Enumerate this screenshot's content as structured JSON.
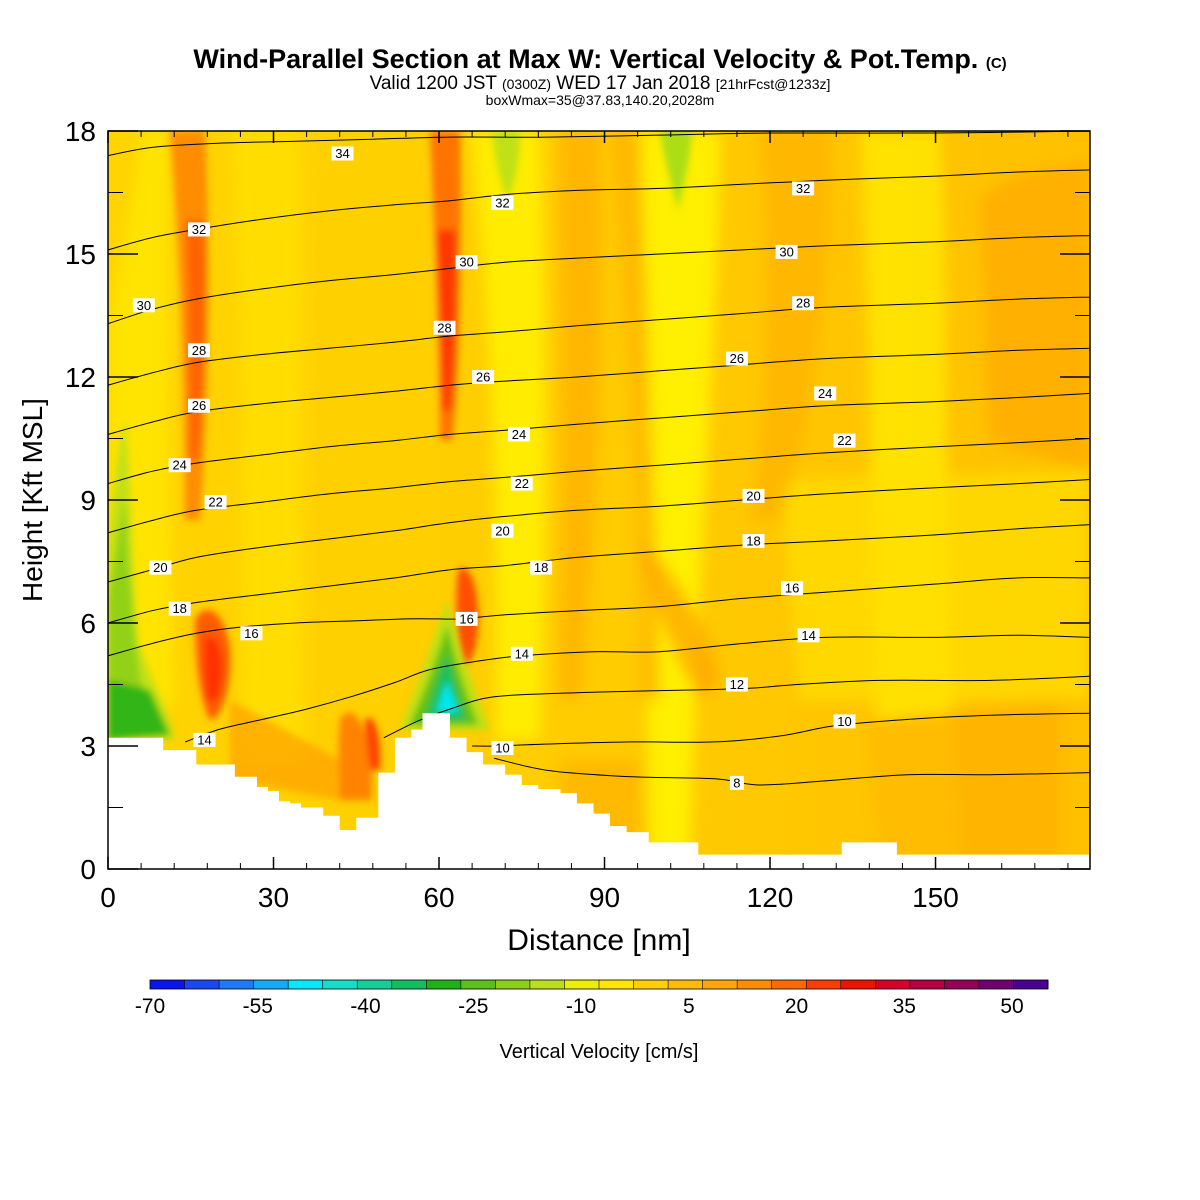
{
  "header": {
    "title": "Wind-Parallel Section at Max W: Vertical Velocity & Pot.Temp.",
    "title_suffix": "(C)",
    "valid_prefix": "Valid 1200 JST",
    "valid_utc": "(0300Z)",
    "valid_date": "WED 17 Jan 2018",
    "forecast_info": "[21hrFcst@1233z]",
    "box_info": "boxWmax=35@37.83,140.20,2028m"
  },
  "chart_data": {
    "type": "contour",
    "xlabel": "Distance [nm]",
    "ylabel": "Height [Kft MSL]",
    "xlim": [
      0,
      178
    ],
    "ylim": [
      0,
      18
    ],
    "x_ticks": [
      0,
      30,
      60,
      90,
      120,
      150
    ],
    "y_ticks": [
      0,
      3,
      6,
      9,
      12,
      15,
      18
    ],
    "colorbar": {
      "label": "Vertical Velocity [cm/s]",
      "tick_labels": [
        "-70",
        "-55",
        "-40",
        "-25",
        "-10",
        "5",
        "20",
        "35",
        "50"
      ],
      "colors": [
        "#0a14f0",
        "#1a46f6",
        "#1e78f8",
        "#14aaf8",
        "#00eaf8",
        "#10e0c8",
        "#14d096",
        "#10c060",
        "#22b018",
        "#5cc018",
        "#8cd018",
        "#bce018",
        "#ecf000",
        "#ffe600",
        "#ffd000",
        "#ffbc00",
        "#ffa600",
        "#ff8c00",
        "#ff6a00",
        "#ff3c00",
        "#f01200",
        "#d80028",
        "#b80040",
        "#980058",
        "#700070",
        "#4a0090"
      ]
    },
    "terrain": [
      [
        0,
        3.2
      ],
      [
        3,
        3.2
      ],
      [
        5,
        3.2
      ],
      [
        7,
        3.2
      ],
      [
        9,
        3.2
      ],
      [
        10,
        3.2
      ],
      [
        10,
        2.9
      ],
      [
        12,
        2.9
      ],
      [
        16,
        2.9
      ],
      [
        16,
        2.55
      ],
      [
        19,
        2.55
      ],
      [
        23,
        2.55
      ],
      [
        23,
        2.25
      ],
      [
        27,
        2.25
      ],
      [
        27,
        2.0
      ],
      [
        29,
        2.0
      ],
      [
        29,
        1.9
      ],
      [
        31,
        1.9
      ],
      [
        31,
        1.65
      ],
      [
        33,
        1.65
      ],
      [
        33,
        1.6
      ],
      [
        35,
        1.6
      ],
      [
        35,
        1.5
      ],
      [
        39,
        1.5
      ],
      [
        39,
        1.3
      ],
      [
        42,
        1.3
      ],
      [
        42,
        0.95
      ],
      [
        45,
        0.95
      ],
      [
        45,
        1.25
      ],
      [
        49,
        1.25
      ],
      [
        49,
        2.35
      ],
      [
        52,
        2.35
      ],
      [
        52,
        3.2
      ],
      [
        55,
        3.2
      ],
      [
        55,
        3.4
      ],
      [
        57,
        3.4
      ],
      [
        57,
        3.8
      ],
      [
        60,
        3.8
      ],
      [
        62,
        3.8
      ],
      [
        62,
        3.2
      ],
      [
        65,
        3.2
      ],
      [
        65,
        2.85
      ],
      [
        68,
        2.85
      ],
      [
        68,
        2.55
      ],
      [
        72,
        2.55
      ],
      [
        72,
        2.3
      ],
      [
        75,
        2.3
      ],
      [
        75,
        2.05
      ],
      [
        78,
        2.05
      ],
      [
        78,
        1.95
      ],
      [
        82,
        1.95
      ],
      [
        82,
        1.85
      ],
      [
        85,
        1.85
      ],
      [
        85,
        1.6
      ],
      [
        88,
        1.6
      ],
      [
        88,
        1.35
      ],
      [
        91,
        1.35
      ],
      [
        91,
        1.05
      ],
      [
        94,
        1.05
      ],
      [
        94,
        0.9
      ],
      [
        98,
        0.9
      ],
      [
        98,
        0.65
      ],
      [
        101,
        0.65
      ],
      [
        107,
        0.65
      ],
      [
        107,
        0.35
      ],
      [
        112,
        0.35
      ],
      [
        118,
        0.35
      ],
      [
        124,
        0.35
      ],
      [
        130,
        0.35
      ],
      [
        133,
        0.35
      ],
      [
        133,
        0.65
      ],
      [
        139,
        0.65
      ],
      [
        143,
        0.65
      ],
      [
        143,
        0.35
      ],
      [
        150,
        0.35
      ],
      [
        162,
        0.35
      ],
      [
        170,
        0.35
      ],
      [
        178,
        0.35
      ]
    ],
    "theta_contours": [
      {
        "label": "8",
        "points": [
          [
            70,
            2.7
          ],
          [
            80,
            2.4
          ],
          [
            95,
            2.25
          ],
          [
            110,
            2.2
          ],
          [
            118,
            2.05
          ],
          [
            130,
            2.15
          ],
          [
            145,
            2.3
          ],
          [
            160,
            2.3
          ],
          [
            178,
            2.35
          ]
        ]
      },
      {
        "label": "10",
        "points": [
          [
            66,
            3.0
          ],
          [
            70,
            3.0
          ],
          [
            80,
            3.05
          ],
          [
            95,
            3.1
          ],
          [
            110,
            3.1
          ],
          [
            122,
            3.25
          ],
          [
            132,
            3.5
          ],
          [
            145,
            3.65
          ],
          [
            160,
            3.75
          ],
          [
            178,
            3.8
          ]
        ]
      },
      {
        "label": "12",
        "points": [
          [
            50,
            3.2
          ],
          [
            56,
            3.6
          ],
          [
            62,
            3.9
          ],
          [
            70,
            4.2
          ],
          [
            85,
            4.3
          ],
          [
            100,
            4.35
          ],
          [
            115,
            4.4
          ],
          [
            125,
            4.5
          ],
          [
            140,
            4.6
          ],
          [
            160,
            4.6
          ],
          [
            178,
            4.7
          ]
        ]
      },
      {
        "label": "14",
        "points": [
          [
            14,
            3.1
          ],
          [
            20,
            3.4
          ],
          [
            28,
            3.65
          ],
          [
            36,
            3.9
          ],
          [
            44,
            4.2
          ],
          [
            52,
            4.55
          ],
          [
            58,
            4.85
          ],
          [
            66,
            5.05
          ],
          [
            75,
            5.2
          ],
          [
            88,
            5.3
          ],
          [
            100,
            5.3
          ],
          [
            115,
            5.5
          ],
          [
            130,
            5.65
          ],
          [
            150,
            5.65
          ],
          [
            165,
            5.7
          ],
          [
            178,
            5.65
          ]
        ]
      },
      {
        "label": "16",
        "points": [
          [
            0,
            5.2
          ],
          [
            8,
            5.5
          ],
          [
            16,
            5.75
          ],
          [
            24,
            5.9
          ],
          [
            34,
            6.0
          ],
          [
            44,
            6.05
          ],
          [
            54,
            6.1
          ],
          [
            60,
            6.1
          ],
          [
            64,
            6.1
          ],
          [
            72,
            6.2
          ],
          [
            85,
            6.3
          ],
          [
            100,
            6.4
          ],
          [
            115,
            6.6
          ],
          [
            130,
            6.75
          ],
          [
            150,
            6.95
          ],
          [
            165,
            7.1
          ],
          [
            178,
            7.1
          ]
        ]
      },
      {
        "label": "18",
        "points": [
          [
            0,
            6.0
          ],
          [
            8,
            6.3
          ],
          [
            16,
            6.5
          ],
          [
            28,
            6.7
          ],
          [
            40,
            6.9
          ],
          [
            52,
            7.1
          ],
          [
            62,
            7.3
          ],
          [
            72,
            7.4
          ],
          [
            85,
            7.6
          ],
          [
            100,
            7.75
          ],
          [
            115,
            7.9
          ],
          [
            130,
            8.0
          ],
          [
            150,
            8.15
          ],
          [
            165,
            8.3
          ],
          [
            178,
            8.4
          ]
        ]
      },
      {
        "label": "20",
        "points": [
          [
            0,
            7.0
          ],
          [
            8,
            7.3
          ],
          [
            16,
            7.6
          ],
          [
            28,
            7.85
          ],
          [
            40,
            8.05
          ],
          [
            52,
            8.25
          ],
          [
            62,
            8.45
          ],
          [
            72,
            8.6
          ],
          [
            85,
            8.75
          ],
          [
            100,
            8.85
          ],
          [
            115,
            9.0
          ],
          [
            130,
            9.15
          ],
          [
            150,
            9.3
          ],
          [
            165,
            9.4
          ],
          [
            178,
            9.5
          ]
        ]
      },
      {
        "label": "22",
        "points": [
          [
            0,
            8.2
          ],
          [
            8,
            8.5
          ],
          [
            16,
            8.75
          ],
          [
            28,
            8.95
          ],
          [
            40,
            9.15
          ],
          [
            52,
            9.3
          ],
          [
            62,
            9.45
          ],
          [
            72,
            9.55
          ],
          [
            85,
            9.7
          ],
          [
            100,
            9.85
          ],
          [
            115,
            10.0
          ],
          [
            130,
            10.15
          ],
          [
            150,
            10.3
          ],
          [
            165,
            10.4
          ],
          [
            178,
            10.5
          ]
        ]
      },
      {
        "label": "24",
        "points": [
          [
            0,
            9.4
          ],
          [
            8,
            9.7
          ],
          [
            16,
            9.9
          ],
          [
            28,
            10.1
          ],
          [
            40,
            10.3
          ],
          [
            52,
            10.45
          ],
          [
            62,
            10.6
          ],
          [
            72,
            10.7
          ],
          [
            85,
            10.85
          ],
          [
            100,
            11.0
          ],
          [
            115,
            11.15
          ],
          [
            130,
            11.3
          ],
          [
            150,
            11.4
          ],
          [
            165,
            11.5
          ],
          [
            178,
            11.6
          ]
        ]
      },
      {
        "label": "26",
        "points": [
          [
            0,
            10.6
          ],
          [
            8,
            10.9
          ],
          [
            16,
            11.15
          ],
          [
            28,
            11.35
          ],
          [
            40,
            11.5
          ],
          [
            52,
            11.65
          ],
          [
            62,
            11.8
          ],
          [
            72,
            11.9
          ],
          [
            85,
            12.0
          ],
          [
            100,
            12.15
          ],
          [
            115,
            12.3
          ],
          [
            130,
            12.45
          ],
          [
            150,
            12.55
          ],
          [
            165,
            12.65
          ],
          [
            178,
            12.7
          ]
        ]
      },
      {
        "label": "28",
        "points": [
          [
            0,
            11.8
          ],
          [
            8,
            12.1
          ],
          [
            16,
            12.35
          ],
          [
            28,
            12.55
          ],
          [
            40,
            12.7
          ],
          [
            52,
            12.85
          ],
          [
            62,
            13.0
          ],
          [
            72,
            13.1
          ],
          [
            85,
            13.25
          ],
          [
            100,
            13.4
          ],
          [
            115,
            13.55
          ],
          [
            130,
            13.7
          ],
          [
            150,
            13.8
          ],
          [
            165,
            13.9
          ],
          [
            178,
            13.95
          ]
        ]
      },
      {
        "label": "30",
        "points": [
          [
            0,
            13.3
          ],
          [
            8,
            13.65
          ],
          [
            16,
            13.9
          ],
          [
            28,
            14.15
          ],
          [
            40,
            14.35
          ],
          [
            52,
            14.5
          ],
          [
            62,
            14.65
          ],
          [
            72,
            14.8
          ],
          [
            85,
            14.9
          ],
          [
            100,
            15.0
          ],
          [
            115,
            15.1
          ],
          [
            130,
            15.2
          ],
          [
            150,
            15.3
          ],
          [
            165,
            15.4
          ],
          [
            178,
            15.45
          ]
        ]
      },
      {
        "label": "32",
        "points": [
          [
            0,
            15.1
          ],
          [
            8,
            15.4
          ],
          [
            16,
            15.6
          ],
          [
            28,
            15.85
          ],
          [
            40,
            16.05
          ],
          [
            52,
            16.2
          ],
          [
            62,
            16.3
          ],
          [
            72,
            16.45
          ],
          [
            85,
            16.55
          ],
          [
            100,
            16.6
          ],
          [
            115,
            16.7
          ],
          [
            130,
            16.8
          ],
          [
            150,
            16.9
          ],
          [
            165,
            17.0
          ],
          [
            178,
            17.05
          ]
        ]
      },
      {
        "label": "34",
        "points": [
          [
            0,
            17.4
          ],
          [
            8,
            17.6
          ],
          [
            20,
            17.7
          ],
          [
            34,
            17.75
          ],
          [
            48,
            17.8
          ],
          [
            62,
            17.85
          ],
          [
            80,
            17.85
          ],
          [
            100,
            17.9
          ],
          [
            120,
            17.95
          ],
          [
            150,
            17.95
          ],
          [
            178,
            18.0
          ]
        ]
      }
    ],
    "contour_labels": [
      {
        "text": "34",
        "x": 42.5,
        "y": 17.45
      },
      {
        "text": "32",
        "x": 16.5,
        "y": 15.6
      },
      {
        "text": "32",
        "x": 71.5,
        "y": 16.25
      },
      {
        "text": "32",
        "x": 126,
        "y": 16.6
      },
      {
        "text": "30",
        "x": 6.5,
        "y": 13.75
      },
      {
        "text": "30",
        "x": 65,
        "y": 14.8
      },
      {
        "text": "30",
        "x": 123,
        "y": 15.05
      },
      {
        "text": "28",
        "x": 16.5,
        "y": 12.65
      },
      {
        "text": "28",
        "x": 61,
        "y": 13.2
      },
      {
        "text": "28",
        "x": 126,
        "y": 13.8
      },
      {
        "text": "26",
        "x": 16.5,
        "y": 11.3
      },
      {
        "text": "26",
        "x": 68,
        "y": 12.0
      },
      {
        "text": "26",
        "x": 114,
        "y": 12.45
      },
      {
        "text": "24",
        "x": 13,
        "y": 9.85
      },
      {
        "text": "24",
        "x": 74.5,
        "y": 10.6
      },
      {
        "text": "24",
        "x": 130,
        "y": 11.6
      },
      {
        "text": "22",
        "x": 19.5,
        "y": 8.95
      },
      {
        "text": "22",
        "x": 75,
        "y": 9.4
      },
      {
        "text": "22",
        "x": 133.5,
        "y": 10.45
      },
      {
        "text": "20",
        "x": 9.5,
        "y": 7.35
      },
      {
        "text": "20",
        "x": 71.5,
        "y": 8.25
      },
      {
        "text": "20",
        "x": 117,
        "y": 9.1
      },
      {
        "text": "18",
        "x": 13,
        "y": 6.35
      },
      {
        "text": "18",
        "x": 78.5,
        "y": 7.35
      },
      {
        "text": "18",
        "x": 117,
        "y": 8.0
      },
      {
        "text": "16",
        "x": 26,
        "y": 5.75
      },
      {
        "text": "16",
        "x": 65,
        "y": 6.1
      },
      {
        "text": "16",
        "x": 124,
        "y": 6.85
      },
      {
        "text": "14",
        "x": 17.5,
        "y": 3.15
      },
      {
        "text": "14",
        "x": 75,
        "y": 5.25
      },
      {
        "text": "14",
        "x": 127,
        "y": 5.7
      },
      {
        "text": "12",
        "x": 114,
        "y": 4.5
      },
      {
        "text": "10",
        "x": 71.5,
        "y": 2.95
      },
      {
        "text": "10",
        "x": 133.5,
        "y": 3.6
      },
      {
        "text": "8",
        "x": 114,
        "y": 2.1
      }
    ]
  }
}
